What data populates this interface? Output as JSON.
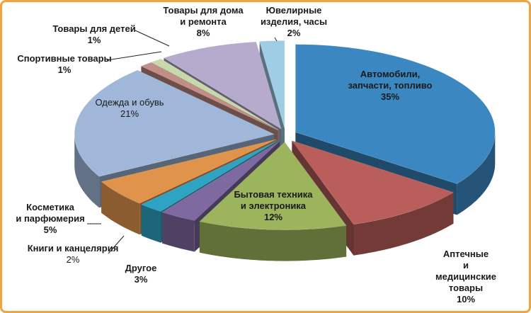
{
  "chart_data": {
    "type": "pie",
    "categories": [
      "Автомобили,\nзапчасти, топливо",
      "Аптечные\nи медицинские\nтовары",
      "Бытовая техника\nи электроника",
      "Другое",
      "Книги и канцелярия",
      "Косметика\nи парфюмерия",
      "Одежда и обувь",
      "Спортивные товары",
      "Товары для детей",
      "Товары для дома\nи ремонта",
      "Ювелирные\nизделия, часы"
    ],
    "values": [
      35,
      10,
      12,
      3,
      2,
      5,
      21,
      1,
      1,
      8,
      2
    ],
    "value_labels": [
      "35%",
      "10%",
      "12%",
      "3%",
      "2%",
      "5%",
      "21%",
      "1%",
      "1%",
      "8%",
      "2%"
    ],
    "colors": [
      "#3b87c1",
      "#b95e5a",
      "#9cb45c",
      "#7f69a1",
      "#2fa3c3",
      "#e0944b",
      "#a0b7d9",
      "#c58d88",
      "#c8d8aa",
      "#b6aacd",
      "#9fcde6"
    ]
  }
}
